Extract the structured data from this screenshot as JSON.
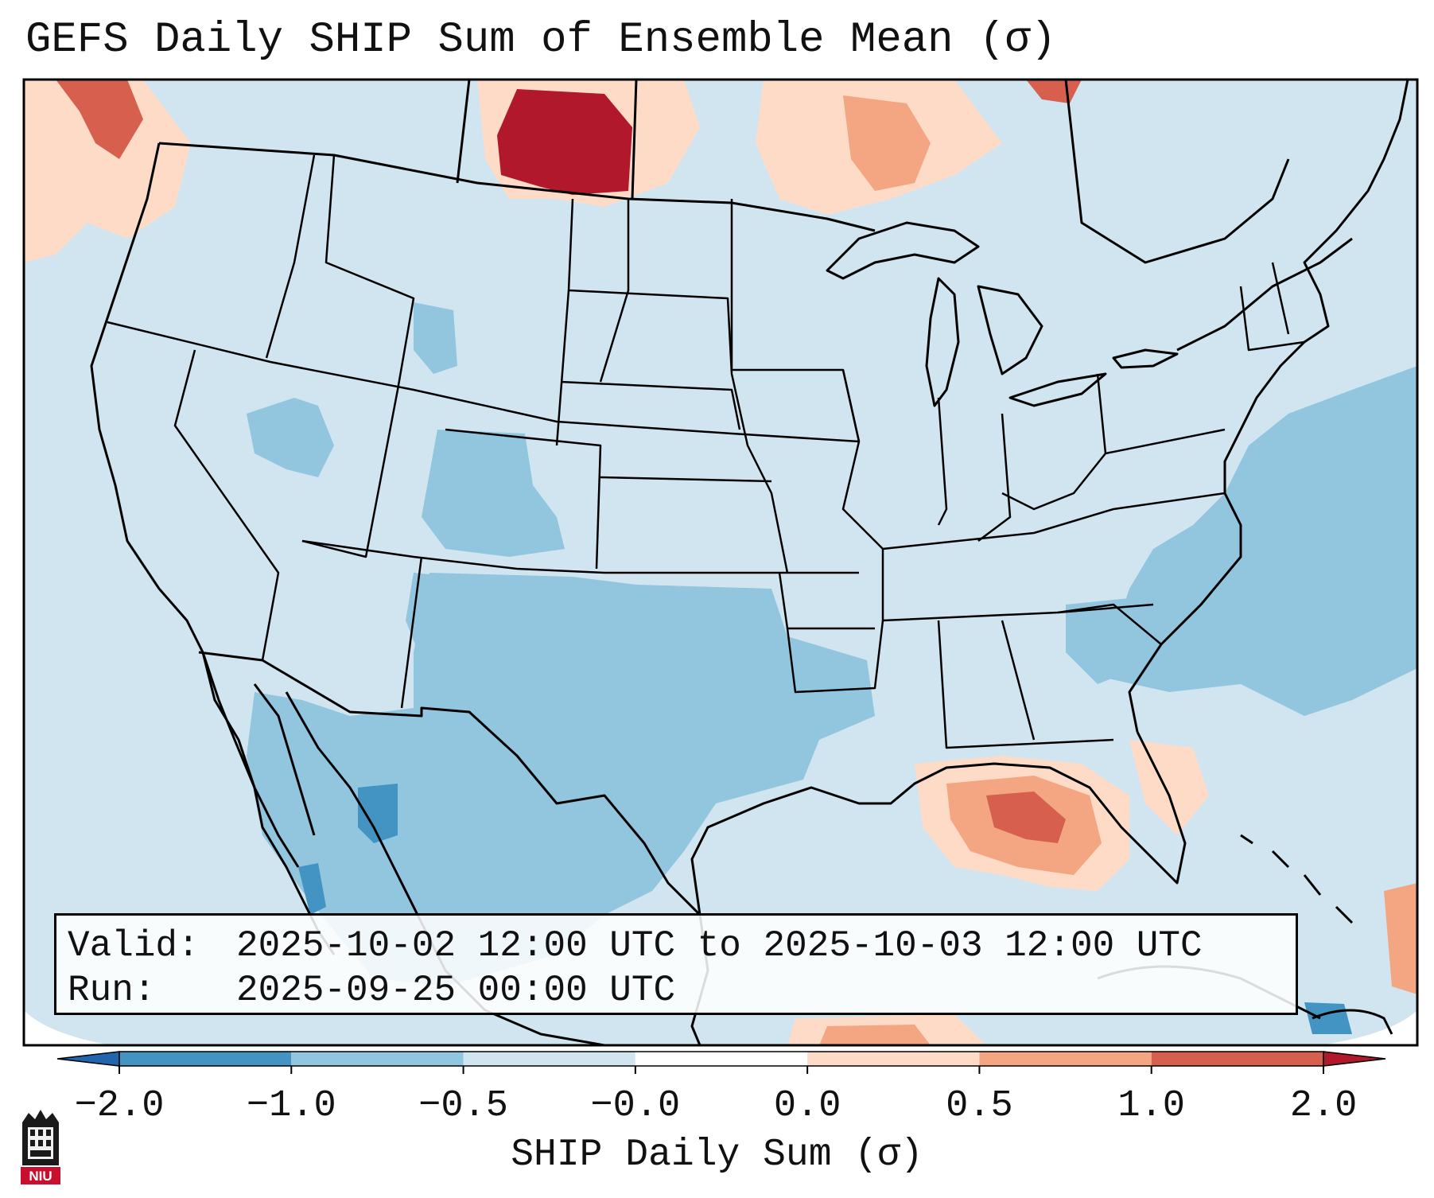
{
  "title": "GEFS Daily SHIP Sum of Ensemble Mean (σ)",
  "info": {
    "valid_key": "Valid:",
    "valid_value": "2025-10-02 12:00 UTC to 2025-10-03 12:00 UTC",
    "run_key": "Run:",
    "run_value": "2025-09-25 00:00 UTC"
  },
  "colorbar": {
    "label": "SHIP Daily Sum (σ)",
    "tick_labels": [
      "−2.0",
      "−1.0",
      "−0.5",
      "−0.0",
      "0.0",
      "0.5",
      "1.0",
      "2.0"
    ],
    "segment_colors": [
      "#2166ac",
      "#4393c3",
      "#92c5de",
      "#d1e5f0",
      "#ffffff",
      "#fddbc7",
      "#f4a582",
      "#d6604d",
      "#b2182b"
    ],
    "extend": "both"
  },
  "map": {
    "background_color": "#d1e5f0",
    "outline_color": "#000000",
    "anomaly_regions": [
      {
        "region": "Texas / southern Plains",
        "category": "-1.0 to -0.5",
        "color": "#92c5de"
      },
      {
        "region": "Western Atlantic",
        "category": "-1.0 to -0.5",
        "color": "#92c5de"
      },
      {
        "region": "Northern Mexico",
        "category": "-2.0 to -1.0",
        "color": "#4393c3"
      },
      {
        "region": "Southern Saskatchewan",
        "category": "> 2.0",
        "color": "#b2182b"
      },
      {
        "region": "Northeast Gulf of Mexico",
        "category": "1.0 to 2.0",
        "color": "#d6604d"
      },
      {
        "region": "Western Ontario",
        "category": "0.5 to 1.0",
        "color": "#f4a582"
      },
      {
        "region": "British Columbia",
        "category": "1.0 to 2.0",
        "color": "#d6604d"
      }
    ]
  },
  "logo": {
    "text": "NIU",
    "name": "Northern Illinois University"
  }
}
